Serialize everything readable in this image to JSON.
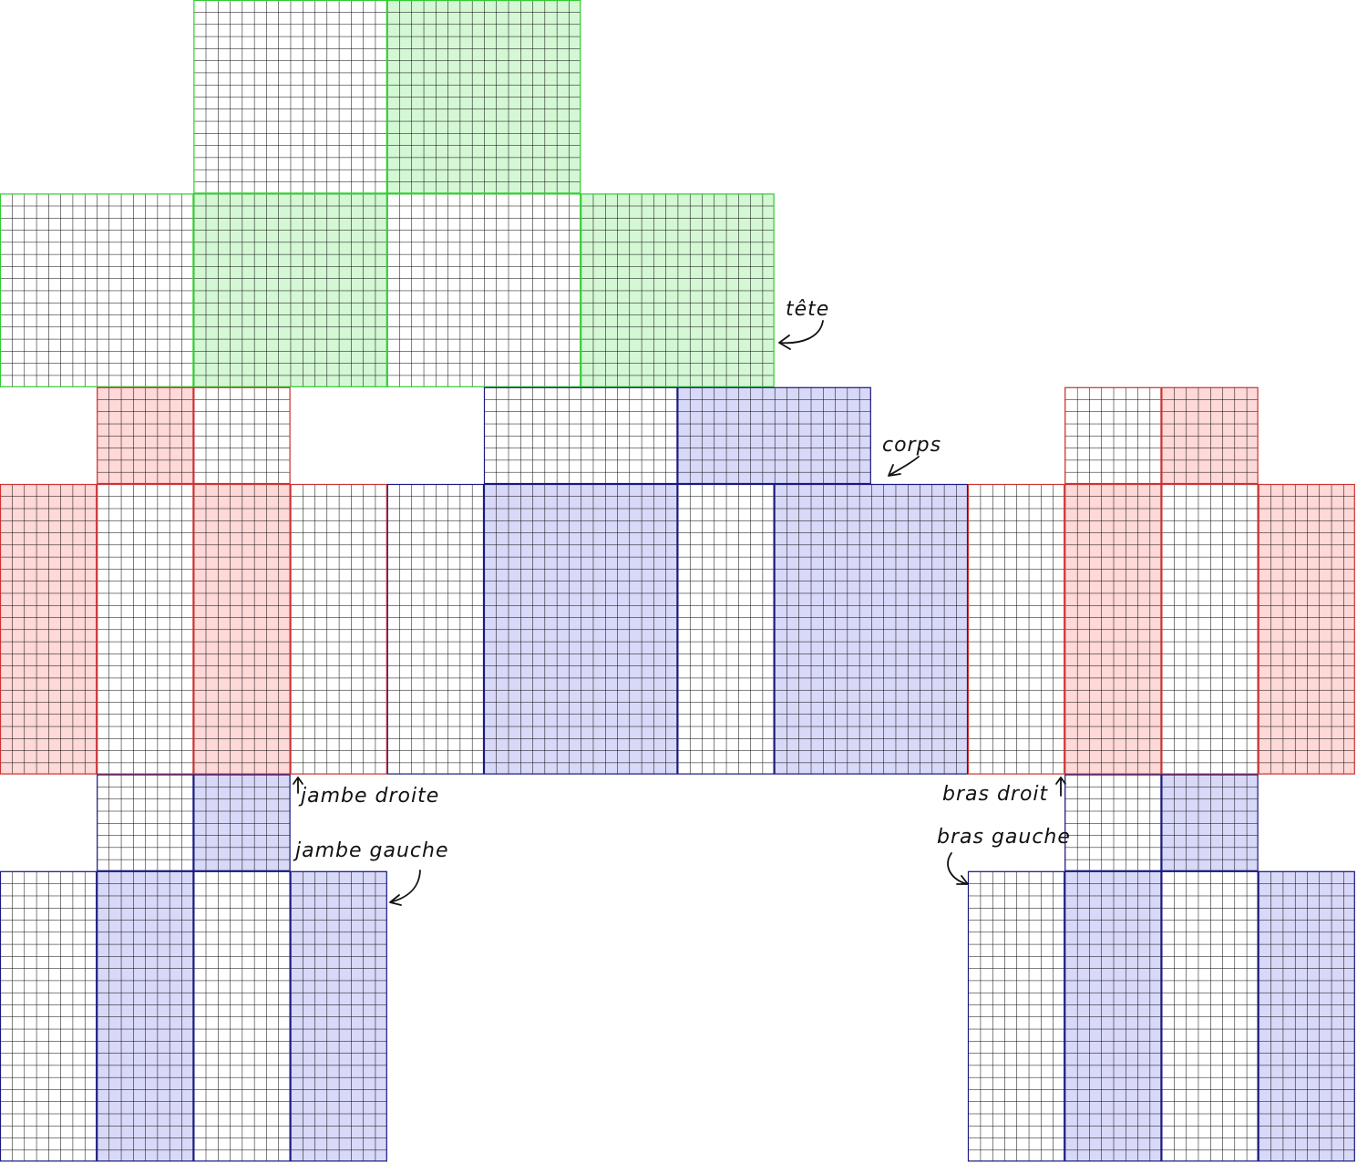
{
  "colors": {
    "grid_line": "#000000",
    "head_fill": "#d4f7d4",
    "head_border": "#33cc33",
    "limb_fill": "#ffd8d8",
    "limb_border": "#cc3333",
    "blue_fill": "#d8d8f8",
    "blue_border": "#1a1a80"
  },
  "labels": {
    "head": "tête",
    "body": "corps",
    "right_leg": "jambe droite",
    "left_leg": "jambe gauche",
    "right_arm": "bras droit",
    "left_arm": "bras gauche"
  },
  "icons": {
    "head_arrow": "curved-arrow-icon",
    "body_arrow": "curved-arrow-icon",
    "right_leg_arrow": "up-arrow-icon",
    "left_leg_arrow": "curved-arrow-icon",
    "right_arm_arrow": "up-arrow-icon",
    "left_arm_arrow": "curved-arrow-icon"
  }
}
